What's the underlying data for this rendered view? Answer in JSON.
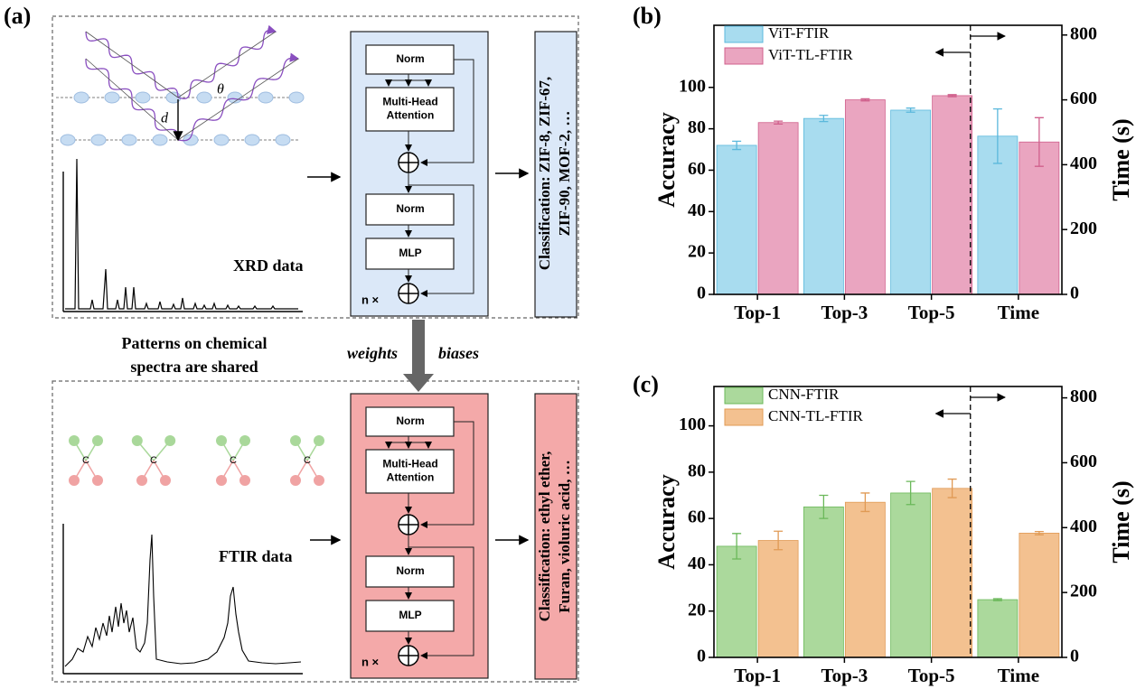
{
  "panel_a": {
    "label": "(a)",
    "theta": "θ",
    "d": "d",
    "xrd_label": "XRD data",
    "ftir_label": "FTIR data",
    "carbon": "C",
    "transformer": {
      "norm": "Norm",
      "attention": [
        "Multi-Head",
        "Attention"
      ],
      "mlp": "MLP",
      "repeat": "n ×"
    },
    "xrd_classification": [
      "Classification: ZIF-8, ZIF-67,",
      "ZIF-90, MOF-2, …"
    ],
    "ftir_classification": [
      "Classification: ethyl ether,",
      "Furan, violuric acid, …"
    ],
    "shared_note": [
      "Patterns on chemical",
      "spectra are shared"
    ],
    "weights": "weights",
    "biases": "biases"
  },
  "chart_data": [
    {
      "type": "bar",
      "panel_label": "(b)",
      "y_label": "Accuracy",
      "y2_label": "Time (s)",
      "categories": [
        "Top-1",
        "Top-3",
        "Top-5",
        "Time"
      ],
      "ylim": [
        0,
        130
      ],
      "yticks": [
        0,
        20,
        40,
        60,
        80,
        100
      ],
      "y2lim": [
        0,
        830
      ],
      "y2ticks": [
        0,
        200,
        400,
        600,
        800
      ],
      "legend": "upper left",
      "series": [
        {
          "name": "ViT-FTIR",
          "color": "#a8dcef",
          "edge": "#5bb8dc",
          "values": [
            72,
            85,
            89,
            null
          ],
          "errors": [
            2,
            1.5,
            1,
            null
          ],
          "y2_values": [
            null,
            null,
            null,
            488
          ],
          "y2_errors": [
            null,
            null,
            null,
            84
          ]
        },
        {
          "name": "ViT-TL-FTIR",
          "color": "#eaa5c0",
          "edge": "#d0608c",
          "values": [
            83,
            94,
            96,
            null
          ],
          "errors": [
            0.7,
            0.5,
            0.5,
            null
          ],
          "y2_values": [
            null,
            null,
            null,
            470
          ],
          "y2_errors": [
            null,
            null,
            null,
            75
          ]
        }
      ]
    },
    {
      "type": "bar",
      "panel_label": "(c)",
      "y_label": "Accuracy",
      "y2_label": "Time (s)",
      "categories": [
        "Top-1",
        "Top-3",
        "Top-5",
        "Time"
      ],
      "ylim": [
        0,
        117
      ],
      "yticks": [
        0,
        20,
        40,
        60,
        80,
        100
      ],
      "y2lim": [
        0,
        835
      ],
      "y2ticks": [
        0,
        200,
        400,
        600,
        800
      ],
      "legend": "upper left",
      "series": [
        {
          "name": "CNN-FTIR",
          "color": "#abd99c",
          "edge": "#6bb85a",
          "values": [
            48,
            65,
            71,
            null
          ],
          "errors": [
            5.5,
            5,
            5,
            null
          ],
          "y2_values": [
            null,
            null,
            null,
            178
          ],
          "y2_errors": [
            null,
            null,
            null,
            3
          ]
        },
        {
          "name": "CNN-TL-FTIR",
          "color": "#f3c190",
          "edge": "#e09a55",
          "values": [
            50.5,
            67,
            73,
            null
          ],
          "errors": [
            4,
            4,
            4,
            null
          ],
          "y2_values": [
            null,
            null,
            null,
            383
          ],
          "y2_errors": [
            null,
            null,
            null,
            5
          ]
        }
      ]
    }
  ]
}
